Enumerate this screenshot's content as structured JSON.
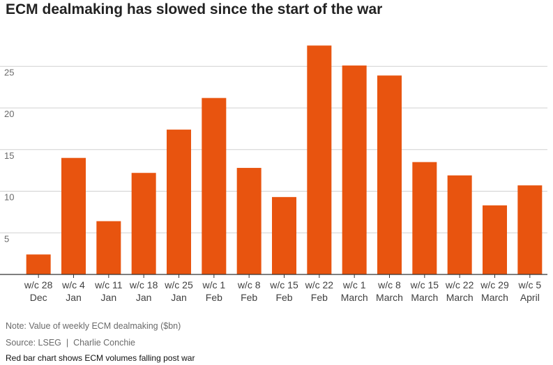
{
  "title": "ECM dealmaking has slowed since the start of the war",
  "note": "Note: Value of weekly ECM dealmaking ($bn)",
  "source": "Source: LSEG",
  "byline": "Charlie Conchie",
  "caption": "Red bar chart shows ECM volumes falling post war",
  "bar_color": "#e8540f",
  "chart_data": {
    "type": "bar",
    "title": "ECM dealmaking has slowed since the start of the war",
    "xlabel": "",
    "ylabel": "",
    "ylim": [
      0,
      28
    ],
    "yticks": [
      5,
      10,
      15,
      20,
      25
    ],
    "grid": true,
    "categories": [
      [
        "w/c 28",
        "Dec"
      ],
      [
        "w/c 4",
        "Jan"
      ],
      [
        "w/c 11",
        "Jan"
      ],
      [
        "w/c 18",
        "Jan"
      ],
      [
        "w/c 25",
        "Jan"
      ],
      [
        "w/c 1",
        "Feb"
      ],
      [
        "w/c 8",
        "Feb"
      ],
      [
        "w/c 15",
        "Feb"
      ],
      [
        "w/c 22",
        "Feb"
      ],
      [
        "w/c 1",
        "March"
      ],
      [
        "w/c 8",
        "March"
      ],
      [
        "w/c 15",
        "March"
      ],
      [
        "w/c 22",
        "March"
      ],
      [
        "w/c 29",
        "March"
      ],
      [
        "w/c 5",
        "April"
      ]
    ],
    "values": [
      2.4,
      14.0,
      6.4,
      12.2,
      17.4,
      21.2,
      12.8,
      9.3,
      27.5,
      25.1,
      23.9,
      13.5,
      11.9,
      8.3,
      10.7
    ]
  }
}
